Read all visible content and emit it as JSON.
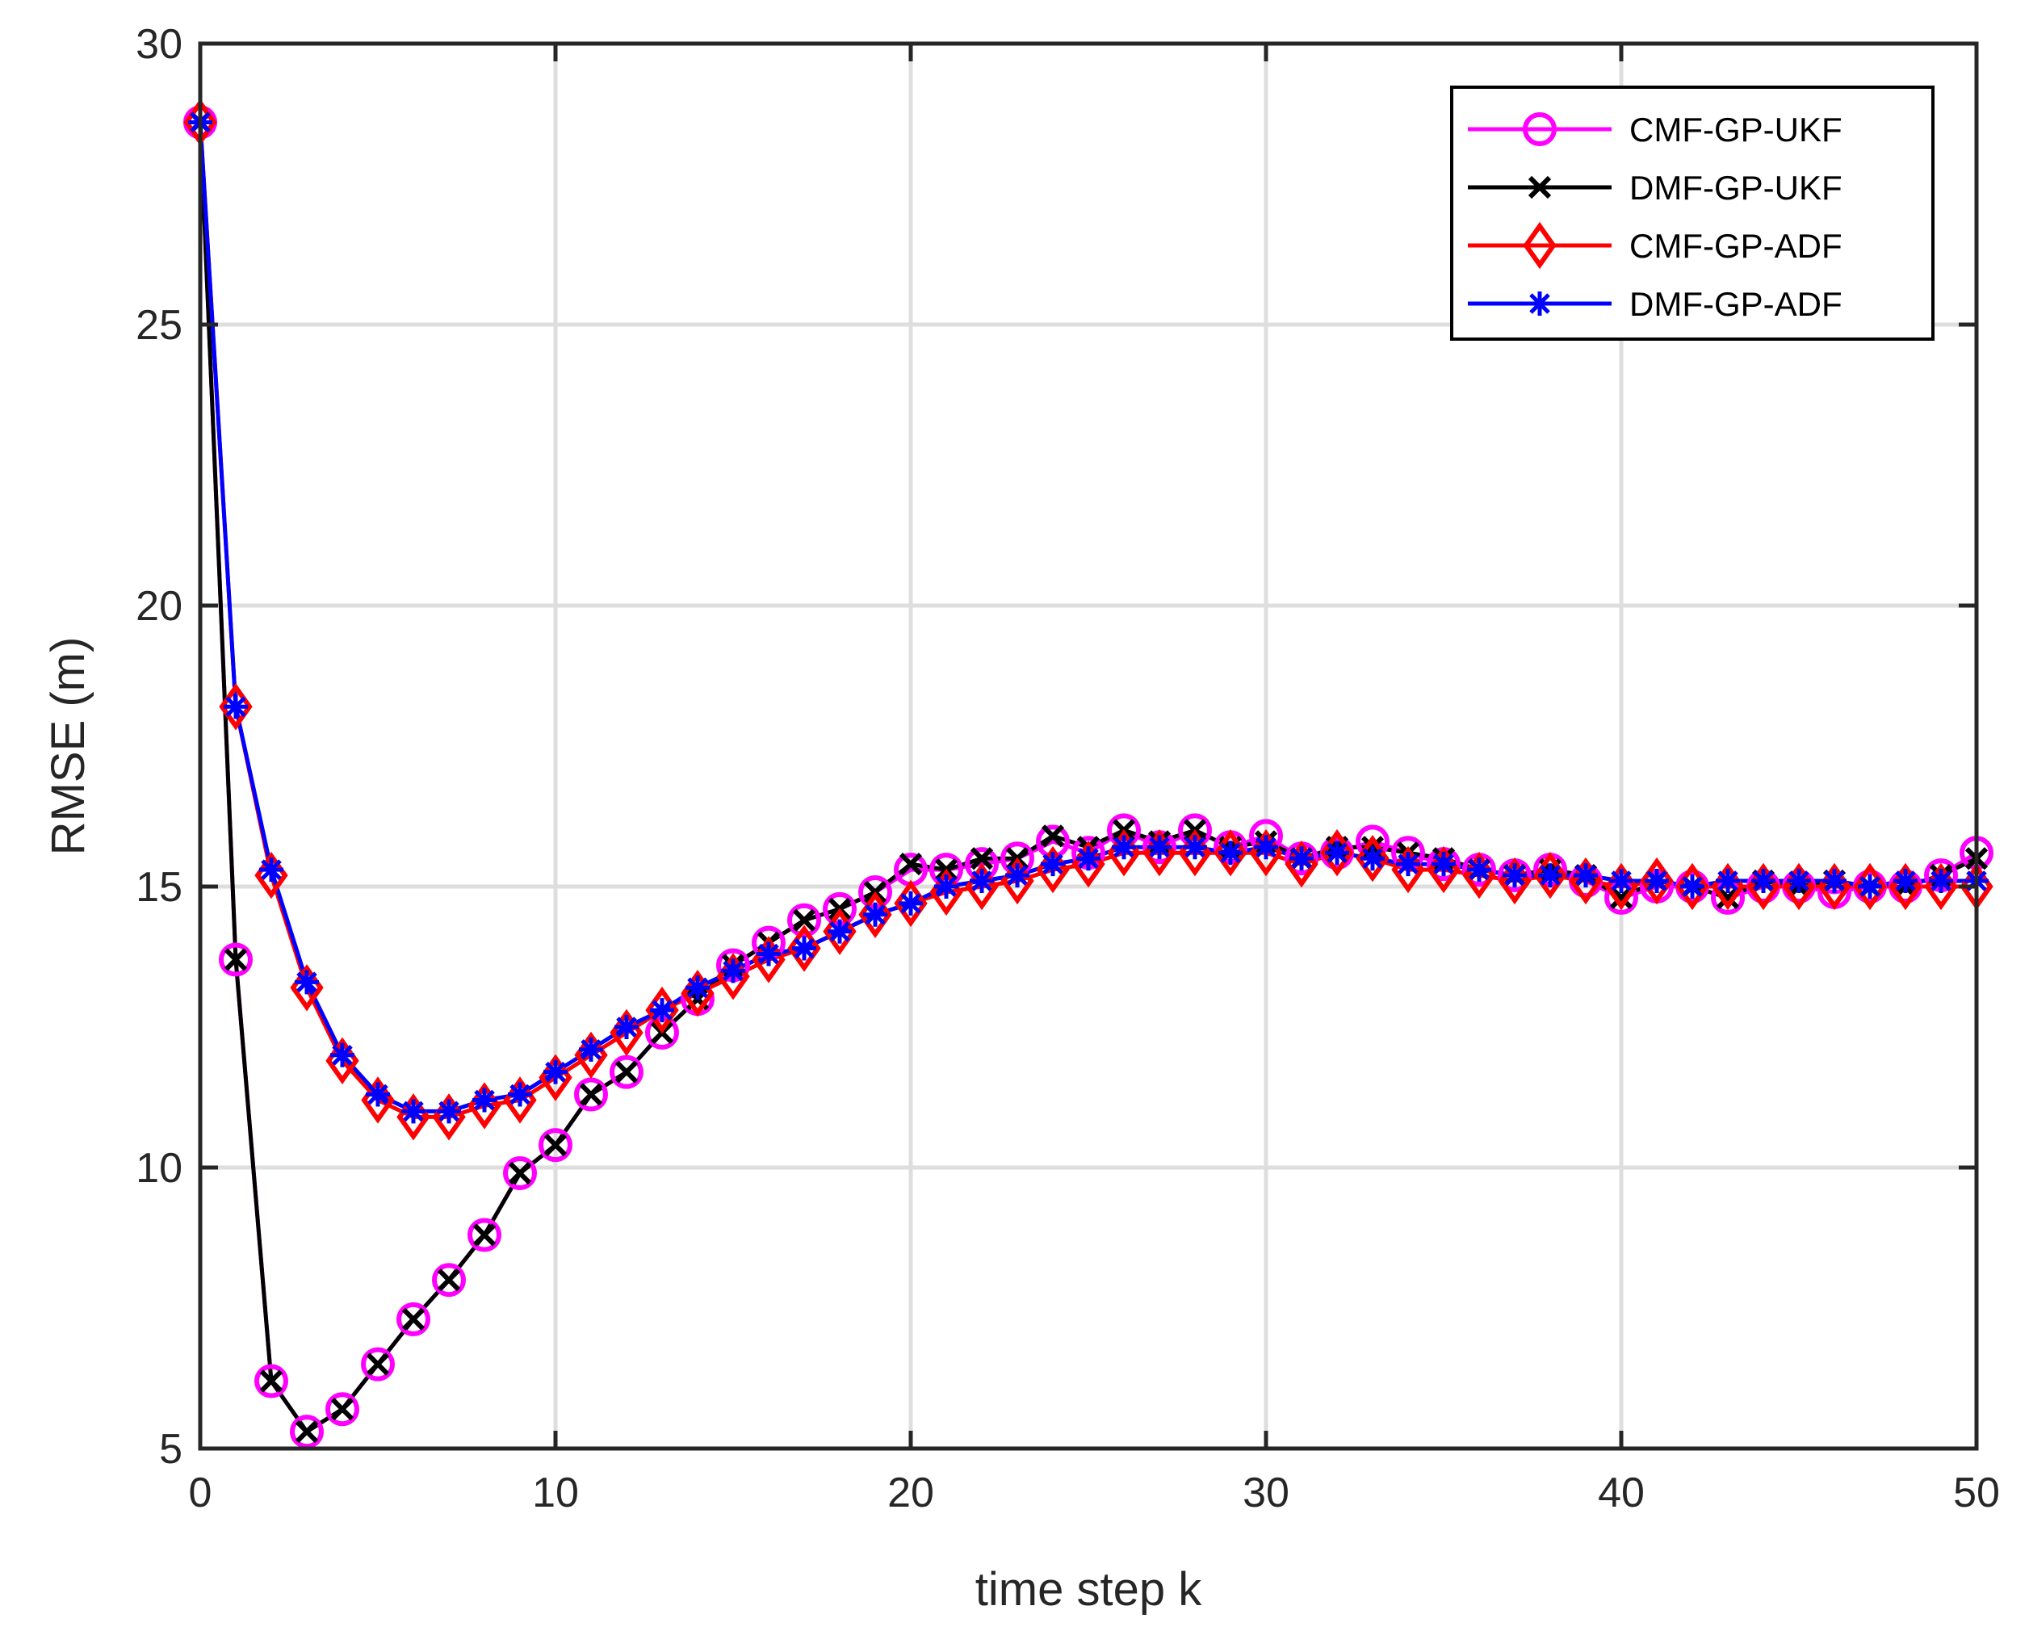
{
  "chart_data": {
    "type": "line",
    "title": "",
    "xlabel": "time step k",
    "ylabel": "RMSE (m)",
    "xlim": [
      0,
      50
    ],
    "ylim": [
      5,
      30
    ],
    "xticks": [
      0,
      10,
      20,
      30,
      40,
      50
    ],
    "yticks": [
      5,
      10,
      15,
      20,
      25,
      30
    ],
    "xtick_labels": [
      "0",
      "10",
      "20",
      "30",
      "40",
      "50"
    ],
    "ytick_labels": [
      "5",
      "10",
      "15",
      "20",
      "25",
      "30"
    ],
    "grid": true,
    "legend_position": "top-right",
    "x": [
      0,
      1,
      2,
      3,
      4,
      5,
      6,
      7,
      8,
      9,
      10,
      11,
      12,
      13,
      14,
      15,
      16,
      17,
      18,
      19,
      20,
      21,
      22,
      23,
      24,
      25,
      26,
      27,
      28,
      29,
      30,
      31,
      32,
      33,
      34,
      35,
      36,
      37,
      38,
      39,
      40,
      41,
      42,
      43,
      44,
      45,
      46,
      47,
      48,
      49,
      50
    ],
    "series": [
      {
        "name": "CMF-GP-UKF",
        "color": "#ff00ff",
        "marker": "circle",
        "values": [
          28.6,
          13.7,
          6.2,
          5.3,
          5.7,
          6.5,
          7.3,
          8.0,
          8.8,
          9.9,
          10.4,
          11.3,
          11.7,
          12.4,
          13.0,
          13.6,
          14.0,
          14.4,
          14.6,
          14.9,
          15.3,
          15.3,
          15.4,
          15.5,
          15.8,
          15.6,
          16.0,
          15.7,
          16.0,
          15.7,
          15.9,
          15.5,
          15.6,
          15.8,
          15.6,
          15.4,
          15.3,
          15.2,
          15.3,
          15.1,
          14.8,
          15.0,
          15.0,
          14.8,
          15.0,
          15.0,
          14.9,
          15.0,
          15.0,
          15.2,
          15.6
        ]
      },
      {
        "name": "DMF-GP-UKF",
        "color": "#000000",
        "marker": "x",
        "values": [
          28.6,
          13.7,
          6.2,
          5.3,
          5.7,
          6.5,
          7.3,
          8.0,
          8.8,
          9.9,
          10.4,
          11.3,
          11.7,
          12.4,
          13.0,
          13.6,
          14.0,
          14.4,
          14.6,
          14.9,
          15.4,
          15.3,
          15.5,
          15.5,
          15.9,
          15.7,
          16.0,
          15.8,
          16.0,
          15.7,
          15.8,
          15.5,
          15.7,
          15.7,
          15.6,
          15.5,
          15.3,
          15.2,
          15.3,
          15.2,
          14.8,
          15.1,
          15.0,
          14.8,
          15.1,
          15.0,
          15.1,
          15.0,
          15.0,
          15.2,
          15.5
        ]
      },
      {
        "name": "CMF-GP-ADF",
        "color": "#ff0000",
        "marker": "diamond",
        "values": [
          28.6,
          18.2,
          15.2,
          13.2,
          11.9,
          11.2,
          10.9,
          10.9,
          11.1,
          11.2,
          11.6,
          12.0,
          12.4,
          12.8,
          13.1,
          13.4,
          13.7,
          13.9,
          14.2,
          14.5,
          14.7,
          14.9,
          15.0,
          15.1,
          15.3,
          15.4,
          15.6,
          15.6,
          15.6,
          15.6,
          15.6,
          15.4,
          15.6,
          15.5,
          15.3,
          15.3,
          15.2,
          15.1,
          15.2,
          15.1,
          15.0,
          15.1,
          15.0,
          15.0,
          15.0,
          15.0,
          15.0,
          15.0,
          15.0,
          15.0,
          15.0
        ]
      },
      {
        "name": "DMF-GP-ADF",
        "color": "#0000ff",
        "marker": "asterisk",
        "values": [
          28.6,
          18.2,
          15.3,
          13.3,
          12.0,
          11.3,
          11.0,
          11.0,
          11.2,
          11.3,
          11.7,
          12.1,
          12.5,
          12.8,
          13.2,
          13.5,
          13.8,
          13.9,
          14.2,
          14.5,
          14.7,
          15.0,
          15.1,
          15.2,
          15.4,
          15.5,
          15.7,
          15.7,
          15.7,
          15.6,
          15.7,
          15.5,
          15.6,
          15.5,
          15.4,
          15.4,
          15.3,
          15.2,
          15.2,
          15.2,
          15.1,
          15.1,
          15.0,
          15.1,
          15.1,
          15.1,
          15.1,
          15.0,
          15.1,
          15.1,
          15.1
        ]
      }
    ]
  }
}
